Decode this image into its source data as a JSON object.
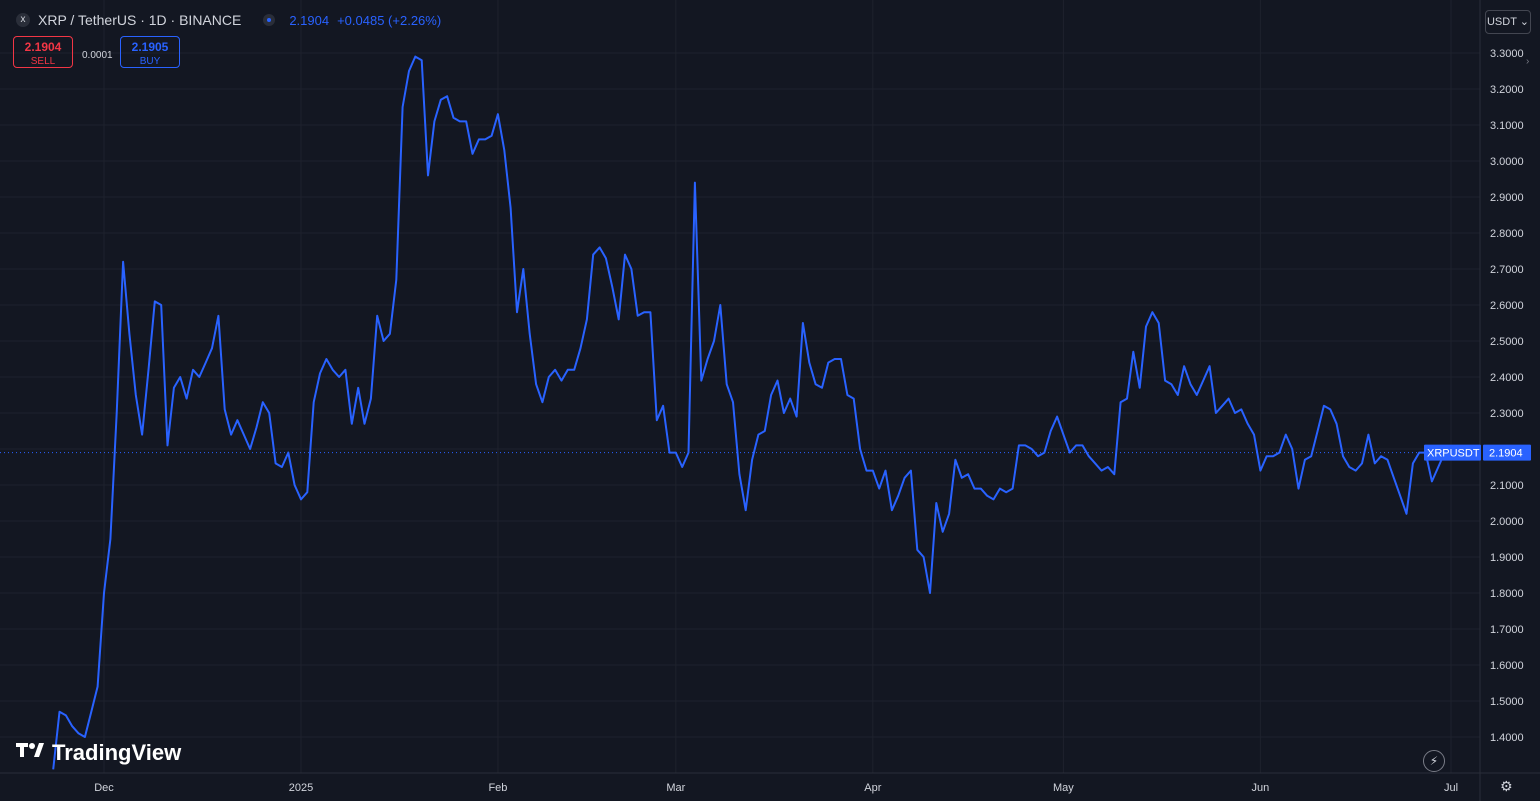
{
  "header": {
    "symbol_title": "XRP / TetherUS · 1D · BINANCE",
    "symbol_icon": "x",
    "last_price": "2.1904",
    "change": "+0.0485 (+2.26%)"
  },
  "trade": {
    "sell_price": "2.1904",
    "sell_label": "SELL",
    "spread": "0.0001",
    "buy_price": "2.1905",
    "buy_label": "BUY"
  },
  "currency_button": "USDT ⌄",
  "brand": "TradingView",
  "colors": {
    "background": "#131722",
    "line": "#2962ff",
    "grid": "#1e222d",
    "axis_text": "#d1d4dc",
    "sell": "#f23645"
  },
  "chart_data": {
    "type": "line",
    "symbol_label": "XRPUSDT",
    "last_value_label": "2.1904",
    "y_ticks": [
      "1.4000",
      "1.5000",
      "1.6000",
      "1.7000",
      "1.8000",
      "1.9000",
      "2.0000",
      "2.1000",
      "2.2000",
      "2.3000",
      "2.4000",
      "2.5000",
      "2.6000",
      "2.7000",
      "2.8000",
      "2.9000",
      "3.0000",
      "3.1000",
      "3.2000",
      "3.3000"
    ],
    "ylim": [
      1.3,
      3.35
    ],
    "x_labels": [
      {
        "label": "Dec",
        "date": "2024-12-01"
      },
      {
        "label": "2025",
        "date": "2025-01-01"
      },
      {
        "label": "Feb",
        "date": "2025-02-01"
      },
      {
        "label": "Mar",
        "date": "2025-03-01"
      },
      {
        "label": "Apr",
        "date": "2025-04-01"
      },
      {
        "label": "May",
        "date": "2025-05-01"
      },
      {
        "label": "Jun",
        "date": "2025-06-01"
      },
      {
        "label": "Jul",
        "date": "2025-07-01"
      }
    ],
    "x_range": [
      "2024-11-23",
      "2025-07-01"
    ],
    "series": [
      {
        "x_start": "2024-11-23",
        "values": [
          1.31,
          1.47,
          1.46,
          1.43,
          1.41,
          1.4,
          1.47,
          1.54,
          1.8,
          1.95,
          2.3,
          2.72,
          2.52,
          2.35,
          2.24,
          2.42,
          2.61,
          2.6,
          2.21,
          2.37,
          2.4,
          2.34,
          2.42,
          2.4,
          2.44,
          2.48,
          2.57,
          2.31,
          2.24,
          2.28,
          2.24,
          2.2,
          2.26,
          2.33,
          2.3,
          2.16,
          2.15,
          2.19,
          2.1,
          2.06,
          2.08,
          2.33,
          2.41,
          2.45,
          2.42,
          2.4,
          2.42,
          2.27,
          2.37,
          2.27,
          2.34,
          2.57,
          2.5,
          2.52,
          2.67,
          3.15,
          3.25,
          3.29,
          3.28,
          2.96,
          3.11,
          3.17,
          3.18,
          3.12,
          3.11,
          3.11,
          3.02,
          3.06,
          3.06,
          3.07,
          3.13,
          3.03,
          2.87,
          2.58,
          2.7,
          2.52,
          2.38,
          2.33,
          2.4,
          2.42,
          2.39,
          2.42,
          2.42,
          2.48,
          2.56,
          2.74,
          2.76,
          2.73,
          2.65,
          2.56,
          2.74,
          2.7,
          2.57,
          2.58,
          2.58,
          2.28,
          2.32,
          2.19,
          2.19,
          2.15,
          2.19,
          2.94,
          2.39,
          2.45,
          2.5,
          2.6,
          2.38,
          2.33,
          2.13,
          2.03,
          2.17,
          2.24,
          2.25,
          2.35,
          2.39,
          2.3,
          2.34,
          2.29,
          2.55,
          2.44,
          2.38,
          2.37,
          2.44,
          2.45,
          2.45,
          2.35,
          2.34,
          2.2,
          2.14,
          2.14,
          2.09,
          2.14,
          2.03,
          2.07,
          2.12,
          2.14,
          1.92,
          1.9,
          1.8,
          2.05,
          1.97,
          2.02,
          2.17,
          2.12,
          2.13,
          2.09,
          2.09,
          2.07,
          2.06,
          2.09,
          2.08,
          2.09,
          2.21,
          2.21,
          2.2,
          2.18,
          2.19,
          2.25,
          2.29,
          2.24,
          2.19,
          2.21,
          2.21,
          2.18,
          2.16,
          2.14,
          2.15,
          2.13,
          2.33,
          2.34,
          2.47,
          2.37,
          2.54,
          2.58,
          2.55,
          2.39,
          2.38,
          2.35,
          2.43,
          2.38,
          2.35,
          2.39,
          2.43,
          2.3,
          2.32,
          2.34,
          2.3,
          2.31,
          2.27,
          2.24,
          2.14,
          2.18,
          2.18,
          2.19,
          2.24,
          2.2,
          2.09,
          2.17,
          2.18,
          2.25,
          2.32,
          2.31,
          2.27,
          2.18,
          2.15,
          2.14,
          2.16,
          2.24,
          2.16,
          2.18,
          2.17,
          2.12,
          2.07,
          2.02,
          2.16,
          2.19,
          2.19,
          2.11,
          2.15,
          2.19
        ]
      }
    ]
  }
}
